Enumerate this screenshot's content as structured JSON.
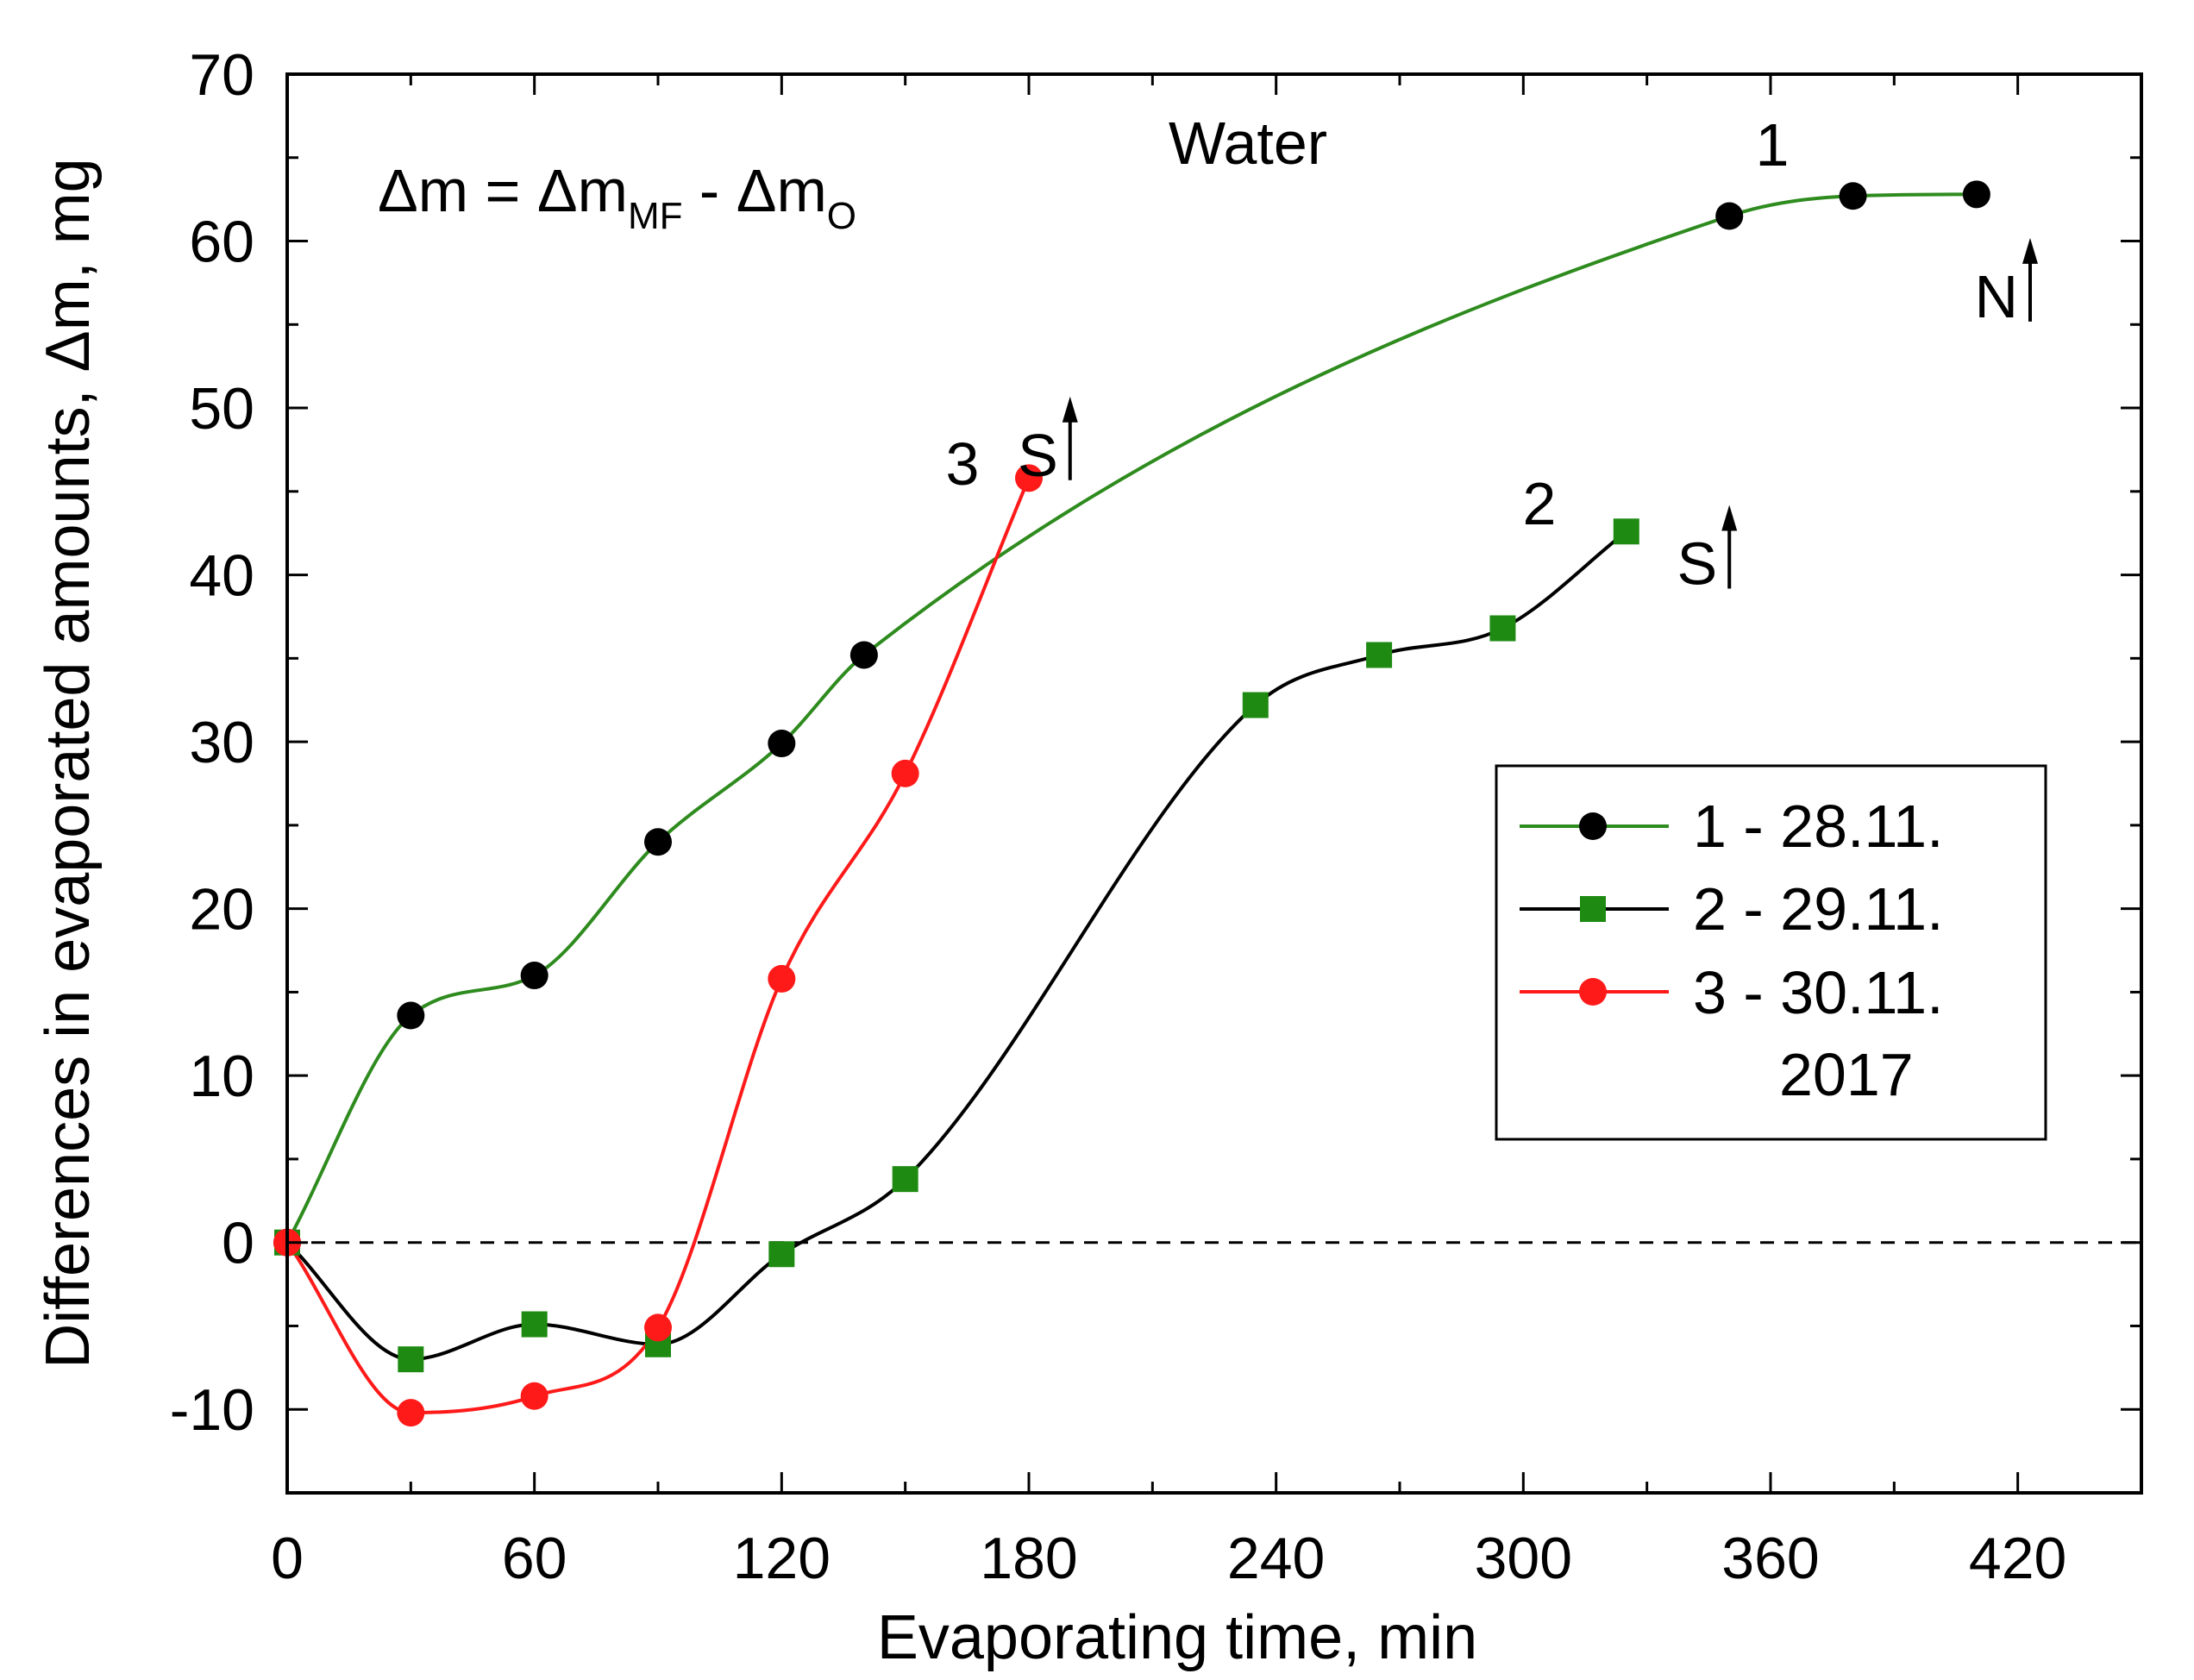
{
  "chart_data": {
    "type": "line",
    "xlabel": "Evaporating time, min",
    "ylabel": "Differences in evaporated amounts, Δm, mg",
    "xlim": [
      0,
      450
    ],
    "ylim": [
      -15,
      70
    ],
    "xticks": [
      0,
      60,
      120,
      180,
      240,
      300,
      360,
      420
    ],
    "yticks": [
      -10,
      0,
      10,
      20,
      30,
      40,
      50,
      60,
      70
    ],
    "tick_labels_x": [
      "0",
      "60",
      "120",
      "180",
      "240",
      "300",
      "360",
      "420"
    ],
    "tick_labels_y": [
      "-10",
      "0",
      "10",
      "20",
      "30",
      "40",
      "50",
      "60",
      "70"
    ],
    "reference_line_y": 0,
    "series": [
      {
        "name": "1 - 28.11.",
        "number": "1",
        "marker": "circle",
        "marker_color": "#000000",
        "line_color": "#2e8b1e",
        "x": [
          0,
          30,
          60,
          90,
          120,
          140,
          350,
          380,
          410
        ],
        "y": [
          0,
          13.6,
          16,
          24,
          29.9,
          35.2,
          61.5,
          62.7,
          62.8
        ]
      },
      {
        "name": "2 - 29.11.",
        "number": "2",
        "marker": "square",
        "marker_color": "#1e8a12",
        "line_color": "#000000",
        "x": [
          0,
          30,
          60,
          90,
          120,
          150,
          235,
          265,
          295,
          325
        ],
        "y": [
          0,
          -7,
          -4.9,
          -6.1,
          -0.7,
          3.8,
          32.2,
          35.2,
          36.8,
          42.6
        ]
      },
      {
        "name": "3 - 30.11.",
        "number": "3",
        "marker": "circle",
        "marker_color": "#ff1a1a",
        "line_color": "#ff1a1a",
        "x": [
          0,
          30,
          60,
          90,
          120,
          150,
          180
        ],
        "y": [
          0,
          -10.2,
          -9.2,
          -5.1,
          15.8,
          28.1,
          45.8
        ]
      }
    ],
    "legend": {
      "position": "center-right",
      "entries": [
        "1 - 28.11.",
        "2 - 29.11.",
        "3 - 30.11."
      ],
      "extra": "2017"
    },
    "annotations": {
      "title": "Water",
      "formula": {
        "delta": "Δ",
        "m": "m = ",
        "m2": "m",
        "sub_mf": "MF",
        "minus": " - ",
        "m3": "m",
        "sub_o": "O"
      },
      "arrow_labels": [
        {
          "text": "S",
          "x": 190,
          "y": 48,
          "series": "3"
        },
        {
          "text": "S",
          "x": 350,
          "y": 41.5,
          "series": "2"
        },
        {
          "text": "N",
          "x": 423,
          "y": 57.5,
          "series": "1"
        }
      ]
    }
  }
}
